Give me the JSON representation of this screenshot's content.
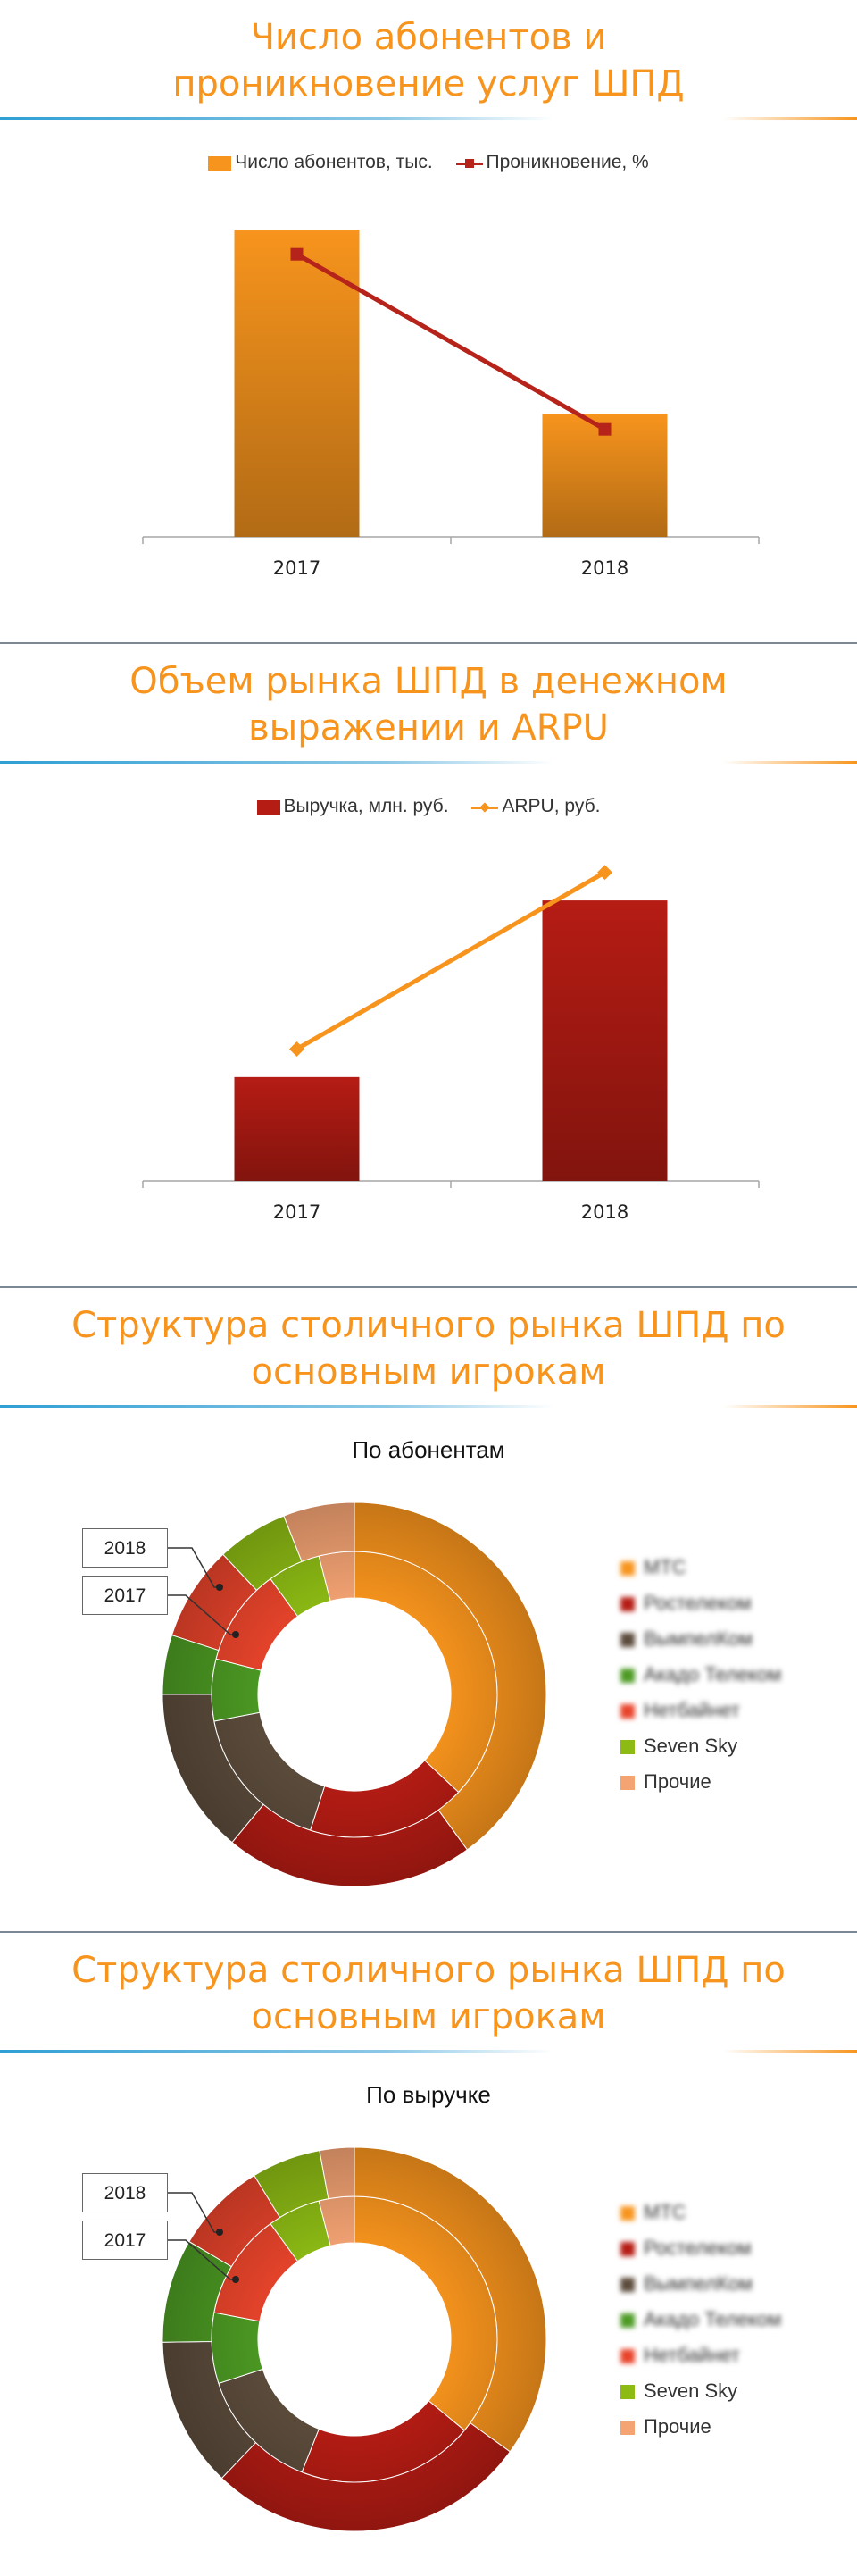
{
  "panels": [
    {
      "title_line1": "Число абонентов и",
      "title_line2": "проникновение услуг ШПД"
    },
    {
      "title_line1": "Объем рынка ШПД в денежном",
      "title_line2": "выражении и ARPU"
    },
    {
      "title_line1": "Структура столичного рынка ШПД по",
      "title_line2": "основным игрокам"
    },
    {
      "title_line1": "Структура столичного рынка ШПД по",
      "title_line2": "основным игрокам"
    }
  ],
  "chart_data": [
    {
      "type": "bar",
      "categories": [
        "2017",
        "2018"
      ],
      "series": [
        {
          "name": "Число абонентов, тыс.",
          "type": "bar",
          "values": [
            100,
            40
          ],
          "color": "#f7941d"
        },
        {
          "name": "Проникновение, %",
          "type": "line",
          "values": [
            92,
            35
          ],
          "color": "#b5231a"
        }
      ],
      "legend_position": "top",
      "ylim": [
        0,
        105
      ]
    },
    {
      "type": "bar",
      "categories": [
        "2017",
        "2018"
      ],
      "series": [
        {
          "name": "Выручка, млн. руб.",
          "type": "bar",
          "values": [
            37,
            100
          ],
          "color": "#b51c14"
        },
        {
          "name": "ARPU, руб.",
          "type": "line",
          "values": [
            47,
            110
          ],
          "color": "#f7941d"
        }
      ],
      "legend_position": "top",
      "ylim": [
        0,
        115
      ]
    },
    {
      "type": "pie",
      "subtitle": "По абонентам",
      "rings": [
        {
          "name": "2017",
          "values": [
            37,
            18,
            17,
            7,
            11,
            6,
            4
          ]
        },
        {
          "name": "2018",
          "values": [
            40,
            21,
            14,
            5,
            8,
            6,
            6
          ]
        }
      ],
      "labels": [
        "МТС",
        "Ростелеком",
        "ВымпелКом",
        "Акадо Телеком",
        "Нетбайнет",
        "Seven Sky",
        "Прочие"
      ],
      "colors": [
        "#f7941d",
        "#b51c14",
        "#5c4c3c",
        "#4c9a23",
        "#e8442b",
        "#8dbb14",
        "#f4a373"
      ],
      "legend_position": "right"
    },
    {
      "type": "pie",
      "subtitle": "По выручке",
      "rings": [
        {
          "name": "2017",
          "values": [
            36,
            20,
            14,
            8,
            12,
            6,
            4
          ]
        },
        {
          "name": "2018",
          "values": [
            36,
            28,
            13,
            9,
            8,
            6,
            3
          ]
        }
      ],
      "labels": [
        "МТС",
        "Ростелеком",
        "ВымпелКом",
        "Акадо Телеком",
        "Нетбайнет",
        "Seven Sky",
        "Прочие"
      ],
      "colors": [
        "#f7941d",
        "#b51c14",
        "#5c4c3c",
        "#4c9a23",
        "#e8442b",
        "#8dbb14",
        "#f4a373"
      ],
      "legend_position": "right"
    }
  ]
}
